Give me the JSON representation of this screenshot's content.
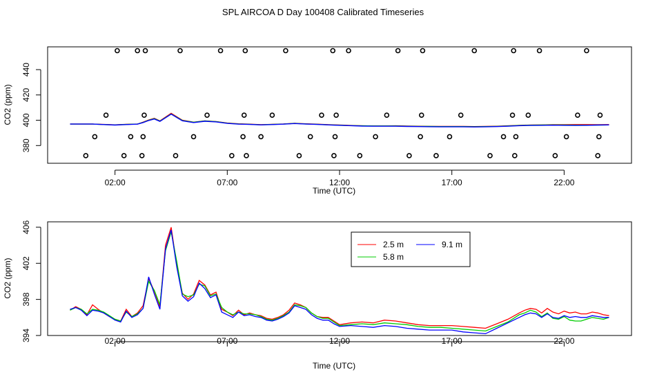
{
  "chart_data": [
    {
      "type": "scatter+line",
      "title": "SPL AIRCOA D  Day 100408  Calibrated Timeseries",
      "xlabel": "Time (UTC)",
      "ylabel": "CO2 (ppm)",
      "xlim": [
        -1.0,
        25.0
      ],
      "ylim": [
        366,
        458
      ],
      "xticks": [
        2,
        7,
        12,
        17,
        22
      ],
      "xtick_labels": [
        "02:00",
        "07:00",
        "12:00",
        "17:00",
        "22:00"
      ],
      "yticks": [
        380,
        400,
        420,
        440
      ],
      "ytick_labels": [
        "380",
        "400",
        "420",
        "440"
      ],
      "points": {
        "x": [
          0.7,
          1.1,
          1.6,
          2.1,
          2.4,
          2.7,
          3.0,
          3.2,
          3.25,
          3.3,
          3.35,
          4.7,
          4.9,
          5.5,
          6.1,
          6.7,
          7.2,
          7.7,
          7.75,
          7.8,
          7.85,
          8.5,
          9.0,
          9.6,
          10.2,
          10.7,
          11.2,
          11.7,
          11.75,
          11.8,
          11.85,
          12.4,
          12.9,
          13.6,
          14.1,
          14.6,
          15.1,
          15.6,
          15.65,
          15.7,
          16.3,
          16.9,
          17.4,
          18.0,
          18.7,
          19.3,
          19.7,
          19.75,
          19.8,
          19.85,
          20.4,
          20.9,
          21.6,
          22.1,
          22.6,
          23.0,
          23.5,
          23.55,
          23.6
        ],
        "y": [
          372,
          387,
          404,
          455,
          372,
          387,
          455,
          372,
          387,
          404,
          455,
          372,
          455,
          387,
          404,
          455,
          372,
          387,
          404,
          455,
          372,
          387,
          404,
          455,
          372,
          387,
          404,
          455,
          372,
          387,
          404,
          455,
          372,
          387,
          404,
          455,
          372,
          387,
          404,
          455,
          372,
          387,
          404,
          455,
          372,
          387,
          404,
          455,
          372,
          387,
          404,
          455,
          372,
          387,
          404,
          455,
          372,
          387,
          404
        ]
      },
      "series": [
        {
          "name": "2.5 m",
          "color": "#ff0000"
        },
        {
          "name": "5.8 m",
          "color": "#00cc00"
        },
        {
          "name": "9.1 m",
          "color": "#0000ff"
        }
      ],
      "x": [
        0,
        0.5,
        1,
        1.5,
        2,
        2.5,
        3,
        3.25,
        3.5,
        3.75,
        4,
        4.5,
        5,
        5.5,
        6,
        6.5,
        7,
        7.5,
        8,
        8.5,
        9,
        9.5,
        10,
        10.5,
        11,
        11.5,
        12,
        12.5,
        13,
        13.5,
        14,
        14.5,
        15,
        15.5,
        16,
        16.5,
        17,
        17.5,
        18,
        18.5,
        19,
        19.5,
        20,
        20.5,
        21,
        21.5,
        22,
        22.5,
        23,
        23.5,
        24
      ],
      "values_2_5": [
        397,
        397,
        397,
        396.7,
        396.4,
        396.8,
        397,
        398.5,
        400.2,
        401.5,
        399.5,
        405.5,
        400,
        398.5,
        399.5,
        399,
        397.8,
        397.2,
        396.9,
        396.5,
        396.8,
        397.1,
        397.6,
        397.2,
        396.9,
        396.5,
        396.2,
        395.9,
        395.6,
        395.5,
        395.5,
        395.6,
        395.4,
        395.3,
        395.2,
        395.1,
        395.1,
        395.1,
        395.0,
        395.1,
        395.3,
        395.6,
        396.0,
        396.2,
        396.3,
        396.5,
        396.5,
        396.6,
        396.6,
        396.5,
        396.6
      ],
      "values_5_8": [
        397,
        397,
        397,
        396.6,
        396.3,
        396.7,
        397,
        398.3,
        400.0,
        401.2,
        399.3,
        405.0,
        399.8,
        398.4,
        399.4,
        398.9,
        397.7,
        397.1,
        396.8,
        396.4,
        396.7,
        397.0,
        397.5,
        397.1,
        396.8,
        396.4,
        396.1,
        395.8,
        395.6,
        395.5,
        395.5,
        395.5,
        395.3,
        395.2,
        395.1,
        395.0,
        395.0,
        395.0,
        394.9,
        395.0,
        395.2,
        395.5,
        395.9,
        396.1,
        396.2,
        396.3,
        396.2,
        396.1,
        396.1,
        396.2,
        396.3
      ],
      "values_9_1": [
        397,
        397,
        397,
        396.6,
        396.2,
        396.6,
        396.9,
        398.2,
        399.8,
        401.0,
        399.1,
        404.8,
        399.6,
        398.2,
        399.2,
        398.7,
        397.5,
        396.9,
        396.7,
        396.3,
        396.6,
        396.9,
        397.4,
        397.0,
        396.7,
        396.3,
        396.0,
        395.7,
        395.4,
        395.3,
        395.3,
        395.3,
        395.1,
        395.0,
        394.9,
        394.8,
        394.8,
        394.8,
        394.7,
        394.8,
        395.0,
        395.3,
        395.7,
        395.9,
        396.0,
        396.1,
        396.0,
        395.9,
        396.0,
        396.2,
        396.3
      ]
    },
    {
      "type": "line",
      "xlabel": "Time (UTC)",
      "ylabel": "CO2 (ppm)",
      "xlim": [
        -1.0,
        25.0
      ],
      "ylim": [
        394.0,
        406.6
      ],
      "xticks": [
        2,
        7,
        12,
        17,
        22
      ],
      "xtick_labels": [
        "02:00",
        "07:00",
        "12:00",
        "17:00",
        "22:00"
      ],
      "yticks": [
        394,
        398,
        402,
        406
      ],
      "ytick_labels": [
        "394",
        "398",
        "402",
        "406"
      ],
      "legend": {
        "position": "top-center"
      },
      "x": [
        0,
        0.25,
        0.5,
        0.75,
        1,
        1.25,
        1.5,
        1.75,
        2,
        2.25,
        2.5,
        2.75,
        3,
        3.25,
        3.5,
        3.75,
        4,
        4.25,
        4.5,
        4.75,
        5,
        5.25,
        5.5,
        5.75,
        6,
        6.25,
        6.5,
        6.75,
        7,
        7.25,
        7.5,
        7.75,
        8,
        8.25,
        8.5,
        8.75,
        9,
        9.25,
        9.5,
        9.75,
        10,
        10.25,
        10.5,
        10.75,
        11,
        11.25,
        11.5,
        11.75,
        12,
        12.5,
        13,
        13.5,
        14,
        14.5,
        15,
        15.5,
        16,
        16.5,
        17,
        17.5,
        18,
        18.5,
        19,
        19.5,
        20,
        20.25,
        20.5,
        20.75,
        21,
        21.25,
        21.5,
        21.75,
        22,
        22.25,
        22.5,
        22.75,
        23,
        23.25,
        23.5,
        23.75,
        24
      ],
      "series": [
        {
          "name": "2.5 m",
          "color": "#ff0000",
          "values": [
            396.8,
            397.2,
            396.9,
            396.3,
            397.4,
            396.9,
            396.5,
            396.1,
            395.8,
            395.6,
            396.9,
            396.1,
            396.5,
            397.3,
            400.3,
            398.9,
            397.2,
            404.0,
            406.0,
            401.8,
            398.7,
            398.0,
            398.6,
            400.1,
            399.6,
            398.5,
            398.8,
            396.9,
            396.6,
            396.2,
            396.8,
            396.3,
            396.5,
            396.3,
            396.2,
            395.9,
            395.8,
            396.0,
            396.3,
            396.8,
            397.6,
            397.4,
            397.1,
            396.5,
            396.1,
            396.0,
            396.0,
            395.6,
            395.2,
            395.4,
            395.5,
            395.4,
            395.7,
            395.6,
            395.4,
            395.2,
            395.1,
            395.1,
            395.1,
            395.0,
            394.9,
            394.8,
            395.3,
            395.8,
            396.5,
            396.8,
            397.0,
            396.9,
            396.5,
            397.0,
            396.6,
            396.4,
            396.7,
            396.5,
            396.6,
            396.4,
            396.4,
            396.6,
            396.5,
            396.3,
            396.2
          ]
        },
        {
          "name": "5.8 m",
          "color": "#00cc00",
          "values": [
            396.8,
            397.1,
            396.9,
            396.4,
            396.9,
            396.8,
            396.6,
            396.2,
            395.8,
            395.6,
            396.6,
            396.1,
            396.4,
            397.0,
            400.0,
            399.0,
            397.4,
            403.4,
            405.5,
            402.2,
            398.6,
            398.3,
            398.5,
            399.7,
            399.5,
            398.4,
            398.6,
            397.1,
            396.6,
            396.3,
            396.6,
            396.4,
            396.4,
            396.3,
            396.1,
            395.8,
            395.7,
            395.9,
            396.2,
            396.6,
            397.4,
            397.3,
            397.1,
            396.5,
            396.1,
            395.9,
            395.9,
            395.5,
            395.1,
            395.2,
            395.3,
            395.2,
            395.4,
            395.3,
            395.2,
            395.0,
            394.9,
            394.9,
            394.8,
            394.7,
            394.6,
            394.5,
            395.0,
            395.5,
            396.3,
            396.5,
            396.8,
            396.6,
            396.1,
            396.5,
            395.9,
            395.8,
            396.1,
            395.7,
            395.6,
            395.6,
            395.8,
            396.0,
            395.9,
            395.8,
            396.0
          ]
        },
        {
          "name": "9.1 m",
          "color": "#0000ff",
          "values": [
            396.9,
            397.1,
            396.8,
            396.2,
            396.8,
            396.7,
            396.5,
            396.1,
            395.7,
            395.5,
            396.7,
            396.0,
            396.3,
            397.0,
            400.5,
            398.6,
            396.9,
            403.6,
            405.7,
            401.6,
            398.4,
            397.8,
            398.3,
            399.8,
            399.2,
            398.2,
            398.5,
            396.6,
            396.3,
            396.0,
            396.6,
            396.2,
            396.3,
            396.1,
            396.0,
            395.7,
            395.6,
            395.8,
            396.1,
            396.5,
            397.3,
            397.1,
            396.9,
            396.3,
            395.9,
            395.7,
            395.7,
            395.3,
            395.0,
            395.1,
            395.0,
            394.9,
            395.1,
            395.0,
            394.8,
            394.7,
            394.6,
            394.6,
            394.6,
            394.4,
            394.3,
            394.2,
            394.8,
            395.4,
            396.0,
            396.3,
            396.5,
            396.4,
            396.0,
            396.4,
            396.0,
            395.9,
            396.2,
            396.0,
            396.1,
            396.0,
            396.0,
            396.2,
            396.1,
            396.0,
            396.0
          ]
        }
      ]
    }
  ]
}
